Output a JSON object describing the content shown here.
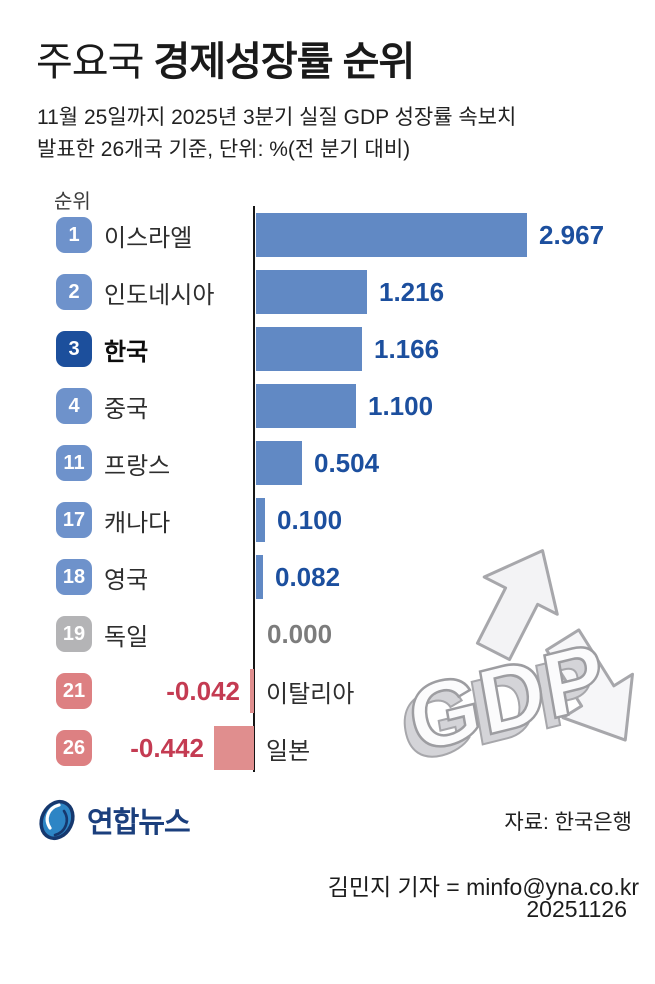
{
  "header": {
    "title_regular": "주요국",
    "title_bold": "경제성장률 순위",
    "subtitle_line1": "11월 25일까지 2025년 3분기 실질 GDP 성장률 속보치",
    "subtitle_line2": "발표한 26개국 기준, 단위: %(전 분기 대비)"
  },
  "chart": {
    "rank_header": "순위"
  },
  "chart_data": {
    "type": "bar",
    "orientation": "horizontal",
    "title": "주요국 경제성장률 순위",
    "note": "11월 25일까지 2025년 3분기 실질 GDP 성장률 속보치 발표한 26개국 기준, 단위: %(전 분기 대비)",
    "rows": [
      {
        "rank": "1",
        "country": "이스라엘",
        "value": 2.967,
        "display": "2.967",
        "style": "blue",
        "highlight": false
      },
      {
        "rank": "2",
        "country": "인도네시아",
        "value": 1.216,
        "display": "1.216",
        "style": "blue",
        "highlight": false
      },
      {
        "rank": "3",
        "country": "한국",
        "value": 1.166,
        "display": "1.166",
        "style": "highlight",
        "highlight": true
      },
      {
        "rank": "4",
        "country": "중국",
        "value": 1.1,
        "display": "1.100",
        "style": "blue",
        "highlight": false
      },
      {
        "rank": "11",
        "country": "프랑스",
        "value": 0.504,
        "display": "0.504",
        "style": "blue",
        "highlight": false
      },
      {
        "rank": "17",
        "country": "캐나다",
        "value": 0.1,
        "display": "0.100",
        "style": "blue",
        "highlight": false
      },
      {
        "rank": "18",
        "country": "영국",
        "value": 0.082,
        "display": "0.082",
        "style": "blue",
        "highlight": false
      },
      {
        "rank": "19",
        "country": "독일",
        "value": 0.0,
        "display": "0.000",
        "style": "zero",
        "highlight": false
      },
      {
        "rank": "21",
        "country": "이탈리아",
        "value": -0.042,
        "display": "-0.042",
        "style": "negative",
        "highlight": false
      },
      {
        "rank": "26",
        "country": "일본",
        "value": -0.442,
        "display": "-0.442",
        "style": "negative",
        "highlight": false
      }
    ]
  },
  "colors": {
    "bar_blue": "#6189c4",
    "bar_red": "#e08e8e",
    "badge_blue": "#6e92cb",
    "badge_dark": "#1c4f9c",
    "badge_gray": "#b4b4b6",
    "badge_red": "#dd8082",
    "value_blue": "#1c4f9e",
    "value_red": "#c43b52",
    "value_gray": "#7c7c7c"
  },
  "watermark": {
    "label": "GDP"
  },
  "footer": {
    "logo_text": "연합뉴스",
    "source": "자료: 한국은행",
    "byline": "김민지 기자 = minfo@yna.co.kr",
    "date": "20251126"
  }
}
